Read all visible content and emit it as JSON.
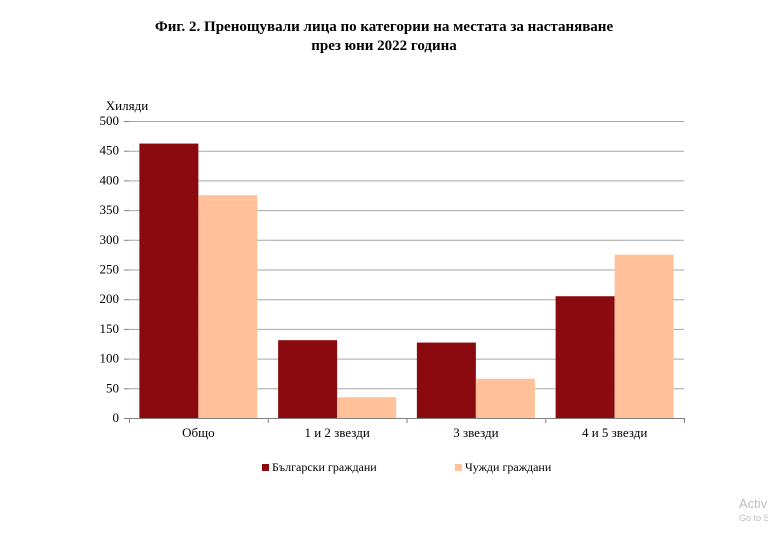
{
  "title": {
    "line1": "Фиг. 2. Пренощували лица по категории на местата за настаняване",
    "line2": "през юни 2022 година"
  },
  "chart_data": {
    "type": "bar",
    "title": "Фиг. 2. Пренощували лица по категории на местата за настаняване през юни 2022 година",
    "ylabel": "Хиляди",
    "xlabel": "",
    "categories": [
      "Общо",
      "1 и 2 звезди",
      "3 звезди",
      "4 и 5 звезди"
    ],
    "series": [
      {
        "name": "Български граждани",
        "values": [
          462,
          131,
          127,
          205
        ],
        "color": "#8b0a0f"
      },
      {
        "name": "Чужди граждани",
        "values": [
          375,
          35,
          66,
          275
        ],
        "color": "#ffc09a"
      }
    ],
    "ylim": [
      0,
      500
    ],
    "yticks": [
      "0",
      "50",
      "100",
      "150",
      "200",
      "250",
      "300",
      "350",
      "400",
      "450",
      "500"
    ],
    "grid": true,
    "legend": "bottom"
  },
  "watermark": {
    "line1": "Activ",
    "line2": "Go to S"
  }
}
